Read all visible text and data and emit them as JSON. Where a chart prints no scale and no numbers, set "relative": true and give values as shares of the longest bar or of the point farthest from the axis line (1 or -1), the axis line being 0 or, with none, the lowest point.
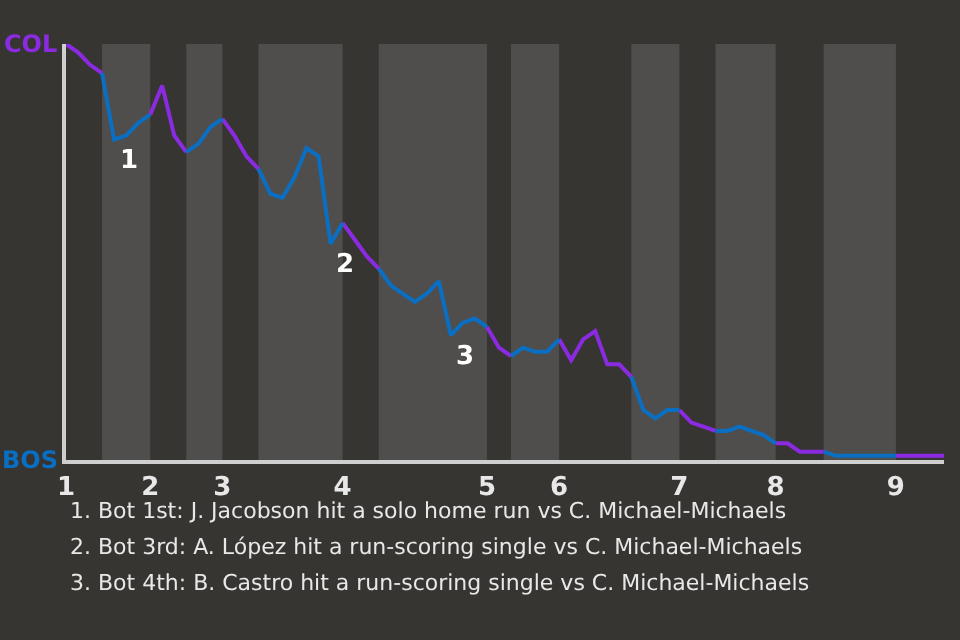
{
  "chart_data": {
    "type": "line",
    "relative": true,
    "categories": [
      "1",
      null,
      null,
      null,
      null,
      null,
      null,
      "2",
      null,
      null,
      null,
      null,
      null,
      "3",
      null,
      null,
      null,
      null,
      null,
      null,
      null,
      null,
      null,
      "4",
      null,
      null,
      null,
      null,
      null,
      null,
      null,
      null,
      null,
      null,
      null,
      "5",
      null,
      null,
      null,
      null,
      null,
      "6",
      null,
      null,
      null,
      null,
      null,
      null,
      null,
      null,
      null,
      "7",
      null,
      null,
      null,
      null,
      null,
      null,
      null,
      "8",
      null,
      null,
      null,
      null,
      null,
      null,
      null,
      null,
      null,
      "9",
      null,
      null,
      null,
      null
    ],
    "legend": false,
    "series": [
      {
        "color": "#8a2be2",
        "values": [
          1.0,
          0.98,
          0.95,
          0.93,
          null,
          null,
          null,
          0.83,
          0.9,
          0.78,
          0.74,
          null,
          null,
          0.82,
          0.78,
          0.73,
          0.7,
          null,
          null,
          null,
          null,
          null,
          null,
          0.57,
          0.53,
          0.49,
          0.46,
          null,
          null,
          null,
          null,
          null,
          null,
          null,
          null,
          0.32,
          0.27,
          0.25,
          null,
          null,
          null,
          0.29,
          0.24,
          0.29,
          0.31,
          0.23,
          0.23,
          0.2,
          null,
          null,
          null,
          0.12,
          0.09,
          0.08,
          0.07,
          null,
          null,
          null,
          null,
          0.04,
          0.04,
          0.02,
          0.02,
          0.02,
          null,
          null,
          null,
          null,
          null,
          0.01,
          0.01,
          0.01,
          0.01,
          0.01
        ]
      },
      {
        "color": "#0a6fc2",
        "values": [
          null,
          null,
          null,
          0.93,
          0.77,
          0.78,
          0.81,
          0.83,
          null,
          null,
          0.74,
          0.76,
          0.8,
          0.82,
          null,
          null,
          0.7,
          0.64,
          0.63,
          0.68,
          0.75,
          0.73,
          0.52,
          0.57,
          null,
          null,
          0.46,
          0.42,
          0.4,
          0.38,
          0.4,
          0.43,
          0.3,
          0.33,
          0.34,
          0.32,
          null,
          0.25,
          0.27,
          0.26,
          0.26,
          0.29,
          null,
          null,
          null,
          null,
          null,
          0.2,
          0.12,
          0.1,
          0.12,
          0.12,
          null,
          null,
          0.07,
          0.07,
          0.08,
          0.07,
          0.06,
          0.04,
          null,
          null,
          null,
          0.02,
          0.01,
          0.01,
          0.01,
          0.01,
          0.01,
          0.01,
          null,
          null,
          null,
          null
        ]
      }
    ],
    "annotations": [
      "COL",
      "BOS",
      {
        "text": "1",
        "y": 0.77
      },
      {
        "text": "2",
        "y": 0.52
      },
      {
        "text": "3",
        "y": 0.3
      },
      "1. Bot 1st: J. Jacobson hit a solo home run vs C. Michael-Michaels",
      "2. Bot 3rd: A. López hit a run-scoring single vs C. Michael-Michaels",
      "3. Bot 4th: B. Castro hit a run-scoring single vs C. Michael-Michaels"
    ]
  }
}
